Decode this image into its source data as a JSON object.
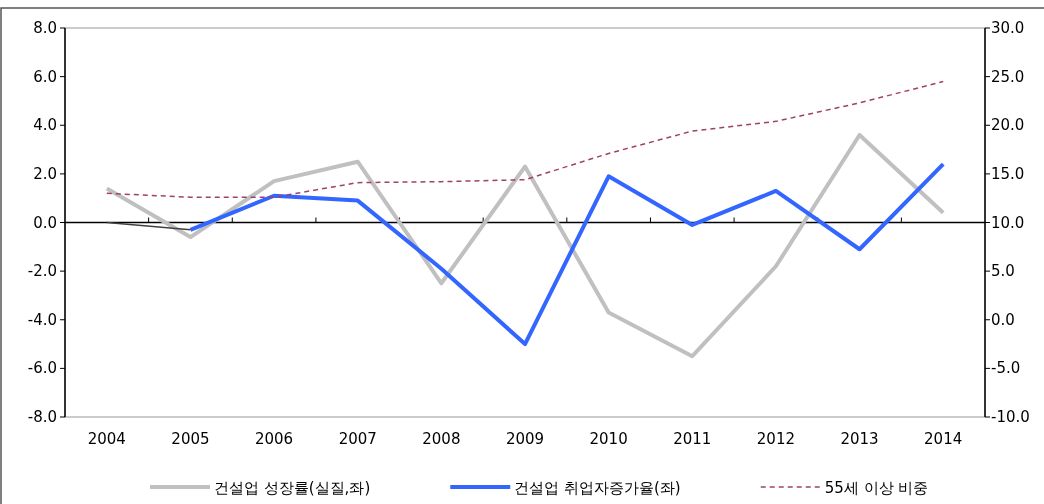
{
  "chart_data": {
    "type": "line",
    "categories": [
      "2004",
      "2005",
      "2006",
      "2007",
      "2008",
      "2009",
      "2010",
      "2011",
      "2012",
      "2013",
      "2014"
    ],
    "series": [
      {
        "name": "건설업 성장률(실질,좌)",
        "color": "#c0c0c0",
        "values": [
          1.4,
          -0.6,
          1.7,
          2.5,
          -2.5,
          2.3,
          -3.7,
          -5.5,
          -1.8,
          3.6,
          0.4
        ]
      },
      {
        "name": "건설업 취업자증가율(좌)",
        "color": "#3366ff",
        "values": [
          null,
          -0.3,
          1.1,
          0.9,
          -1.9,
          -5.0,
          1.9,
          -0.1,
          1.3,
          -1.1,
          2.4
        ]
      },
      {
        "color": "#404040",
        "values": [
          0.0,
          -0.3,
          null,
          null,
          null,
          null,
          null,
          null,
          null,
          null,
          null
        ]
      },
      {
        "name": "55세 이상 비중",
        "color": "#a0406a",
        "axis": "y2",
        "line_style": "dashed",
        "values": [
          13.0,
          12.6,
          12.6,
          14.1,
          14.2,
          14.4,
          17.1,
          19.4,
          20.4,
          22.3,
          24.5
        ]
      }
    ],
    "ylim": [
      -8,
      8
    ],
    "yticks": [
      {
        "value": -8,
        "label": "-8.0"
      },
      {
        "value": -6,
        "label": "-6.0"
      },
      {
        "value": -4,
        "label": "-4.0"
      },
      {
        "value": -2,
        "label": "-2.0"
      },
      {
        "value": 0,
        "label": "0.0"
      },
      {
        "value": 2,
        "label": "2.0"
      },
      {
        "value": 4,
        "label": "4.0"
      },
      {
        "value": 6,
        "label": "6.0"
      },
      {
        "value": 8,
        "label": "8.0"
      }
    ],
    "y2lim": [
      -10,
      30
    ],
    "y2ticks": [
      {
        "value": -10,
        "label": "-10.0"
      },
      {
        "value": -5,
        "label": "-5.0"
      },
      {
        "value": 0,
        "label": "0.0"
      },
      {
        "value": 5,
        "label": "5.0"
      },
      {
        "value": 10,
        "label": "10.0"
      },
      {
        "value": 15,
        "label": "15.0"
      },
      {
        "value": 20,
        "label": "20.0"
      },
      {
        "value": 25,
        "label": "25.0"
      },
      {
        "value": 30,
        "label": "30.0"
      }
    ],
    "legend": "bottom"
  }
}
